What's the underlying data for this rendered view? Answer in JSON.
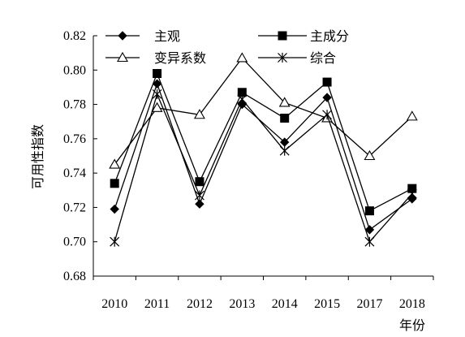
{
  "chart_data": {
    "type": "line",
    "ylabel": "可用性指数",
    "xlabel": "年份",
    "categories": [
      "2010",
      "2011",
      "2012",
      "2013",
      "2014",
      "2015",
      "2017",
      "2018"
    ],
    "ylim": [
      0.68,
      0.82
    ],
    "yticks": [
      0.68,
      0.7,
      0.72,
      0.74,
      0.76,
      0.78,
      0.8,
      0.82
    ],
    "ytick_labels": [
      "0.68",
      "0.70",
      "0.72",
      "0.74",
      "0.76",
      "0.78",
      "0.80",
      "0.82"
    ],
    "grid": false,
    "legend_position": "top",
    "series": [
      {
        "name": "主观",
        "marker": "diamond-filled",
        "values": [
          0.719,
          0.792,
          0.722,
          0.78,
          0.758,
          0.784,
          0.707,
          0.725
        ]
      },
      {
        "name": "主成分",
        "marker": "square-filled",
        "values": [
          0.734,
          0.798,
          0.735,
          0.787,
          0.772,
          0.793,
          0.718,
          0.731
        ]
      },
      {
        "name": "变异系数",
        "marker": "triangle-open",
        "values": [
          0.745,
          0.778,
          0.774,
          0.807,
          0.781,
          0.772,
          0.75,
          0.773
        ]
      },
      {
        "name": "综合",
        "marker": "asterisk",
        "values": [
          0.7,
          0.786,
          0.727,
          0.783,
          0.753,
          0.774,
          0.7,
          0.728
        ]
      }
    ]
  }
}
